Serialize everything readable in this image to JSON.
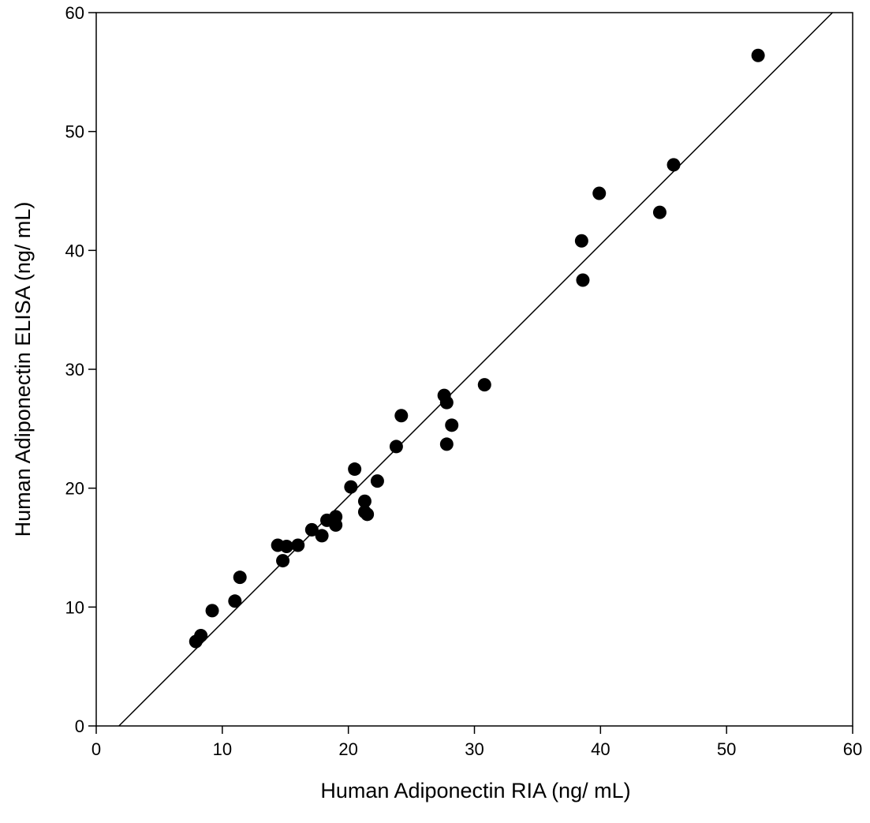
{
  "chart_data": {
    "type": "scatter",
    "title": "",
    "xlabel": "Human Adiponectin RIA (ng/ mL)",
    "ylabel": "Human Adiponectin ELISA (ng/ mL)",
    "xlim": [
      0,
      60
    ],
    "ylim": [
      0,
      60
    ],
    "xticks": [
      "0",
      "10",
      "20",
      "30",
      "40",
      "50",
      "60"
    ],
    "yticks": [
      "0",
      "10",
      "20",
      "30",
      "40",
      "50",
      "60"
    ],
    "grid": false,
    "legend": "none",
    "marker_color": "#000000",
    "points": [
      {
        "x": 7.9,
        "y": 7.1
      },
      {
        "x": 8.3,
        "y": 7.6
      },
      {
        "x": 9.2,
        "y": 9.7
      },
      {
        "x": 11.0,
        "y": 10.5
      },
      {
        "x": 11.4,
        "y": 12.5
      },
      {
        "x": 14.4,
        "y": 15.2
      },
      {
        "x": 14.8,
        "y": 13.9
      },
      {
        "x": 15.1,
        "y": 15.1
      },
      {
        "x": 16.0,
        "y": 15.2
      },
      {
        "x": 17.1,
        "y": 16.5
      },
      {
        "x": 17.9,
        "y": 16.0
      },
      {
        "x": 18.3,
        "y": 17.3
      },
      {
        "x": 19.0,
        "y": 17.6
      },
      {
        "x": 19.0,
        "y": 16.9
      },
      {
        "x": 20.2,
        "y": 20.1
      },
      {
        "x": 20.5,
        "y": 21.6
      },
      {
        "x": 21.3,
        "y": 18.9
      },
      {
        "x": 21.3,
        "y": 18.0
      },
      {
        "x": 21.5,
        "y": 17.8
      },
      {
        "x": 22.3,
        "y": 20.6
      },
      {
        "x": 23.8,
        "y": 23.5
      },
      {
        "x": 24.2,
        "y": 26.1
      },
      {
        "x": 27.6,
        "y": 27.8
      },
      {
        "x": 27.8,
        "y": 27.2
      },
      {
        "x": 27.8,
        "y": 23.7
      },
      {
        "x": 28.2,
        "y": 25.3
      },
      {
        "x": 30.8,
        "y": 28.7
      },
      {
        "x": 38.5,
        "y": 40.8
      },
      {
        "x": 38.6,
        "y": 37.5
      },
      {
        "x": 39.9,
        "y": 44.8
      },
      {
        "x": 44.7,
        "y": 43.2
      },
      {
        "x": 45.8,
        "y": 47.2
      },
      {
        "x": 52.5,
        "y": 56.4
      }
    ],
    "fit_line": {
      "x": [
        1.8,
        58.4
      ],
      "y": [
        0,
        60
      ]
    }
  }
}
